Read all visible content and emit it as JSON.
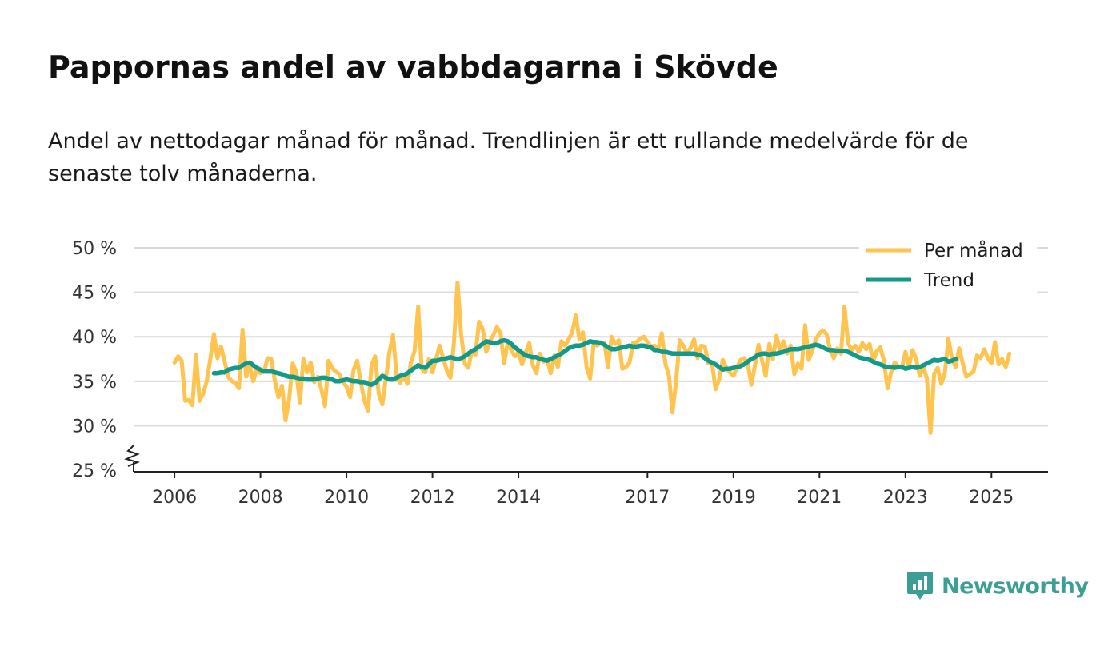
{
  "title": "Pappornas andel av vabbdagarna i Skövde",
  "subtitle": "Andel av nettodagar månad för månad. Trendlinjen är ett rullande medelvärde för de senaste tolv månaderna.",
  "brand": {
    "name": "Newsworthy",
    "color": "#3d9e96"
  },
  "colors": {
    "monthly": "#ffc34f",
    "trend": "#13998a",
    "grid": "#d9d9d9",
    "axis": "#222222"
  },
  "chart_data": {
    "type": "line",
    "title": "Pappornas andel av vabbdagarna i Skövde",
    "xlabel": "",
    "ylabel": "",
    "unit": "%",
    "ylim": [
      25,
      50
    ],
    "xlim": [
      2005.5,
      2026.3
    ],
    "y_axis_break": true,
    "y_ticks": [
      25,
      30,
      35,
      40,
      45,
      50
    ],
    "y_tick_labels": [
      "25 %",
      "30 %",
      "35 %",
      "40 %",
      "45 %",
      "50 %"
    ],
    "x_ticks": [
      2006,
      2008,
      2010,
      2012,
      2014,
      2017,
      2019,
      2021,
      2023,
      2025
    ],
    "x_tick_labels": [
      "2006",
      "2008",
      "2010",
      "2012",
      "2014",
      "2017",
      "2019",
      "2021",
      "2023",
      "2025"
    ],
    "legend": {
      "position": "top-right",
      "entries": [
        "Per månad",
        "Trend"
      ]
    },
    "series": [
      {
        "name": "Per månad",
        "x_start": 2006.0,
        "x_step": 0.08333,
        "values": [
          37.1,
          37.8,
          37.3,
          32.8,
          32.9,
          32.3,
          38.0,
          32.8,
          33.6,
          35.0,
          37.5,
          40.3,
          37.6,
          38.9,
          37.2,
          35.5,
          35.0,
          34.8,
          34.2,
          40.8,
          35.5,
          36.9,
          35.0,
          36.4,
          35.9,
          36.1,
          37.6,
          37.5,
          35.1,
          33.2,
          34.5,
          30.6,
          33.0,
          37.0,
          36.0,
          32.6,
          37.5,
          36.0,
          37.1,
          34.9,
          35.5,
          34.1,
          32.2,
          37.3,
          36.5,
          36.1,
          35.8,
          34.9,
          34.4,
          33.2,
          36.3,
          37.3,
          34.9,
          32.8,
          31.7,
          36.8,
          37.8,
          33.6,
          32.4,
          35.3,
          38.3,
          40.2,
          35.5,
          34.8,
          35.7,
          34.7,
          37.1,
          38.4,
          43.4,
          36.4,
          36.0,
          37.5,
          36.0,
          37.5,
          39.0,
          37.6,
          36.2,
          35.4,
          39.3,
          46.1,
          40.3,
          37.0,
          36.5,
          38.4,
          38.0,
          41.7,
          40.9,
          38.3,
          39.5,
          40.2,
          41.1,
          40.4,
          37.0,
          39.3,
          38.5,
          37.8,
          38.3,
          36.9,
          38.2,
          39.3,
          36.8,
          35.9,
          38.1,
          37.2,
          37.4,
          35.9,
          37.9,
          36.6,
          39.5,
          39.0,
          39.7,
          40.5,
          42.4,
          39.7,
          40.5,
          36.6,
          35.3,
          39.2,
          39.0,
          39.4,
          39.3,
          36.6,
          40.0,
          39.2,
          39.6,
          36.4,
          36.6,
          37.1,
          39.3,
          39.4,
          39.8,
          40.0,
          39.4,
          38.9,
          39.0,
          38.6,
          40.4,
          37.0,
          35.6,
          31.5,
          35.0,
          39.6,
          39.0,
          38.2,
          38.7,
          39.7,
          37.6,
          39.0,
          38.9,
          37.0,
          37.1,
          34.1,
          35.2,
          37.4,
          36.5,
          36.0,
          35.6,
          36.6,
          37.4,
          37.6,
          37.0,
          34.6,
          36.8,
          39.1,
          37.3,
          35.6,
          39.2,
          37.5,
          40.1,
          38.5,
          39.5,
          38.1,
          39.0,
          35.8,
          37.0,
          36.4,
          41.3,
          37.4,
          38.4,
          39.7,
          40.4,
          40.7,
          40.3,
          38.5,
          37.6,
          38.7,
          38.1,
          43.4,
          39.3,
          38.5,
          39.0,
          38.3,
          39.3,
          38.6,
          39.2,
          37.2,
          38.4,
          38.8,
          37.3,
          34.2,
          36.0,
          37.1,
          36.7,
          36.5,
          38.3,
          36.7,
          38.5,
          37.5,
          35.6,
          36.6,
          35.3,
          29.2,
          35.8,
          36.5,
          34.7,
          35.9,
          39.8,
          37.5,
          36.6,
          38.7,
          37.0,
          35.5,
          35.8,
          36.1,
          37.9,
          37.6,
          38.6,
          37.6,
          37.0,
          39.4,
          36.9,
          37.5,
          36.6,
          38.1
        ]
      },
      {
        "name": "Trend",
        "x_start": 2006.9167,
        "x_step": 0.08333,
        "values": [
          35.9,
          35.9,
          36.0,
          36.0,
          36.3,
          36.4,
          36.5,
          36.5,
          36.8,
          37.0,
          37.1,
          36.8,
          36.5,
          36.3,
          36.1,
          36.1,
          36.1,
          36.0,
          35.9,
          35.8,
          35.6,
          35.5,
          35.5,
          35.4,
          35.3,
          35.3,
          35.2,
          35.2,
          35.2,
          35.3,
          35.4,
          35.4,
          35.3,
          35.2,
          35.0,
          35.0,
          35.1,
          35.2,
          35.1,
          35.0,
          35.0,
          34.9,
          34.9,
          34.7,
          34.6,
          34.8,
          35.2,
          35.6,
          35.4,
          35.2,
          35.2,
          35.4,
          35.6,
          35.7,
          35.9,
          36.2,
          36.5,
          36.8,
          36.6,
          36.5,
          36.9,
          37.3,
          37.3,
          37.4,
          37.5,
          37.6,
          37.7,
          37.6,
          37.5,
          37.6,
          37.8,
          38.1,
          38.4,
          38.6,
          38.9,
          39.2,
          39.5,
          39.4,
          39.3,
          39.3,
          39.5,
          39.6,
          39.5,
          39.2,
          38.8,
          38.5,
          38.2,
          37.9,
          37.8,
          37.7,
          37.7,
          37.5,
          37.4,
          37.3,
          37.5,
          37.7,
          37.9,
          38.1,
          38.4,
          38.7,
          38.9,
          39.0,
          39.0,
          39.1,
          39.3,
          39.5,
          39.4,
          39.4,
          39.3,
          39.1,
          38.8,
          38.6,
          38.6,
          38.7,
          38.8,
          38.9,
          39.0,
          38.9,
          38.9,
          39.0,
          39.0,
          38.9,
          38.8,
          38.5,
          38.5,
          38.3,
          38.3,
          38.2,
          38.1,
          38.1,
          38.1,
          38.1,
          38.1,
          38.1,
          38.1,
          38.0,
          37.9,
          37.6,
          37.3,
          37.1,
          36.9,
          36.6,
          36.3,
          36.4,
          36.4,
          36.5,
          36.6,
          36.7,
          36.9,
          37.2,
          37.5,
          37.7,
          38.0,
          38.1,
          38.1,
          38.0,
          38.1,
          38.1,
          38.2,
          38.3,
          38.5,
          38.6,
          38.6,
          38.6,
          38.7,
          38.8,
          38.9,
          39.0,
          39.1,
          39.0,
          38.8,
          38.6,
          38.5,
          38.5,
          38.4,
          38.4,
          38.4,
          38.3,
          38.1,
          37.9,
          37.7,
          37.6,
          37.5,
          37.4,
          37.2,
          37.0,
          36.9,
          36.7,
          36.6,
          36.6,
          36.5,
          36.6,
          36.6,
          36.4,
          36.5,
          36.6,
          36.5,
          36.6,
          36.8,
          37.0,
          37.2,
          37.4,
          37.3,
          37.4,
          37.5,
          37.2,
          37.3,
          37.5
        ]
      }
    ]
  }
}
